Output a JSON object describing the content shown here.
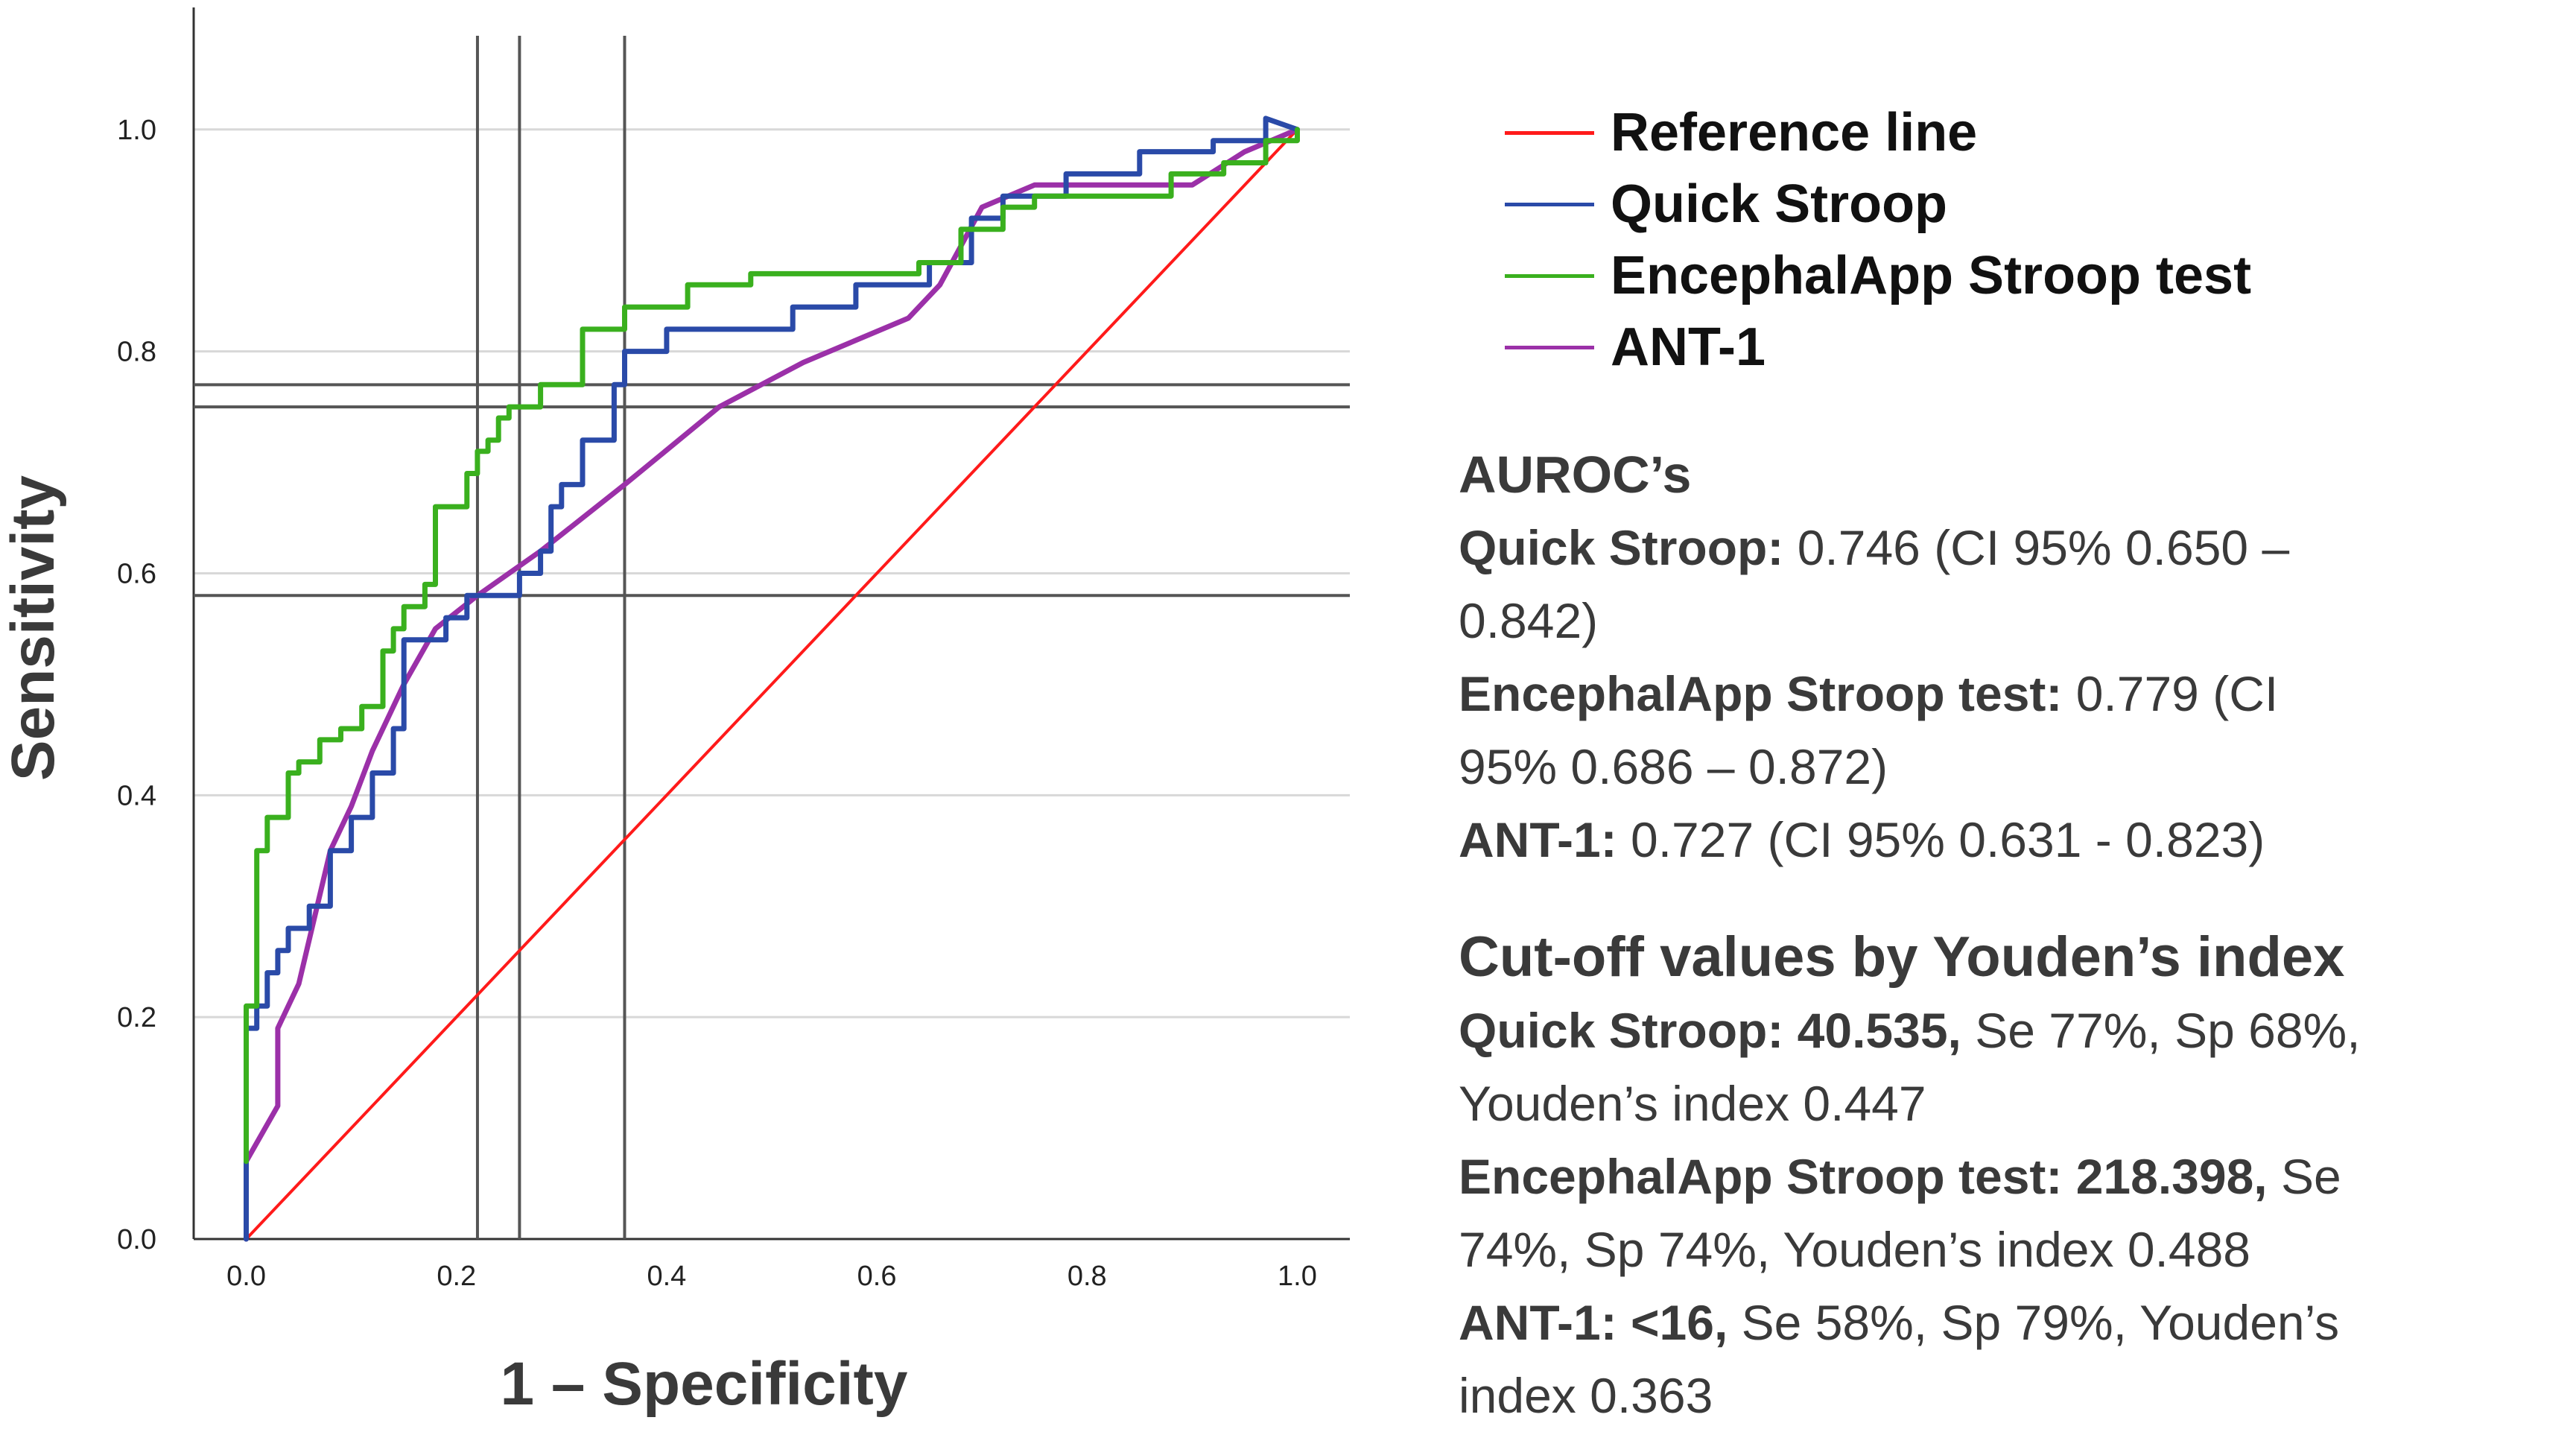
{
  "chart_data": {
    "type": "line",
    "title": "",
    "xlabel": "1 – Specificity",
    "ylabel": "Sensitivity",
    "xlim": [
      -0.05,
      1.05
    ],
    "ylim": [
      0.0,
      1.11
    ],
    "x_ticks": [
      "0.0",
      "0.2",
      "0.4",
      "0.6",
      "0.8",
      "1.0"
    ],
    "y_ticks": [
      "0.0",
      "0.2",
      "0.4",
      "0.6",
      "0.8",
      "1.0"
    ],
    "grid": "horizontal",
    "legend_position": "right",
    "series": [
      {
        "name": "Reference line",
        "color": "#ff1a1a",
        "x": [
          0,
          1
        ],
        "y": [
          0,
          1
        ]
      },
      {
        "name": "Quick Stroop",
        "color": "#2a4aa8",
        "x": [
          0,
          0,
          0.01,
          0.01,
          0.02,
          0.02,
          0.03,
          0.03,
          0.04,
          0.04,
          0.06,
          0.06,
          0.08,
          0.08,
          0.1,
          0.1,
          0.12,
          0.12,
          0.14,
          0.14,
          0.15,
          0.15,
          0.19,
          0.19,
          0.21,
          0.21,
          0.26,
          0.26,
          0.28,
          0.28,
          0.29,
          0.29,
          0.3,
          0.3,
          0.32,
          0.32,
          0.35,
          0.35,
          0.36,
          0.36,
          0.4,
          0.4,
          0.52,
          0.52,
          0.58,
          0.58,
          0.65,
          0.65,
          0.69,
          0.69,
          0.72,
          0.72,
          0.78,
          0.78,
          0.85,
          0.85,
          0.92,
          0.92,
          0.97,
          0.97,
          1.0
        ],
        "y": [
          0,
          0.19,
          0.19,
          0.21,
          0.21,
          0.24,
          0.24,
          0.26,
          0.26,
          0.28,
          0.28,
          0.3,
          0.3,
          0.35,
          0.35,
          0.38,
          0.38,
          0.42,
          0.42,
          0.46,
          0.46,
          0.54,
          0.54,
          0.56,
          0.56,
          0.58,
          0.58,
          0.6,
          0.6,
          0.62,
          0.62,
          0.66,
          0.66,
          0.68,
          0.68,
          0.72,
          0.72,
          0.77,
          0.77,
          0.8,
          0.8,
          0.82,
          0.82,
          0.84,
          0.84,
          0.86,
          0.86,
          0.88,
          0.88,
          0.92,
          0.92,
          0.94,
          0.94,
          0.96,
          0.96,
          0.98,
          0.98,
          0.99,
          0.99,
          1.01,
          1.0
        ]
      },
      {
        "name": "EncephalApp Stroop test",
        "color": "#3ab01e",
        "x": [
          0,
          0,
          0.01,
          0.01,
          0.02,
          0.02,
          0.04,
          0.04,
          0.05,
          0.05,
          0.07,
          0.07,
          0.09,
          0.09,
          0.11,
          0.11,
          0.13,
          0.13,
          0.14,
          0.14,
          0.15,
          0.15,
          0.17,
          0.17,
          0.18,
          0.18,
          0.21,
          0.21,
          0.22,
          0.22,
          0.23,
          0.23,
          0.24,
          0.24,
          0.25,
          0.25,
          0.28,
          0.28,
          0.32,
          0.32,
          0.36,
          0.36,
          0.42,
          0.42,
          0.48,
          0.48,
          0.64,
          0.64,
          0.68,
          0.68,
          0.72,
          0.72,
          0.75,
          0.75,
          0.88,
          0.88,
          0.93,
          0.93,
          0.97,
          0.97,
          1.0,
          1.0
        ],
        "y": [
          0.07,
          0.21,
          0.21,
          0.35,
          0.35,
          0.38,
          0.38,
          0.42,
          0.42,
          0.43,
          0.43,
          0.45,
          0.45,
          0.46,
          0.46,
          0.48,
          0.48,
          0.53,
          0.53,
          0.55,
          0.55,
          0.57,
          0.57,
          0.59,
          0.59,
          0.66,
          0.66,
          0.69,
          0.69,
          0.71,
          0.71,
          0.72,
          0.72,
          0.74,
          0.74,
          0.75,
          0.75,
          0.77,
          0.77,
          0.82,
          0.82,
          0.84,
          0.84,
          0.86,
          0.86,
          0.87,
          0.87,
          0.88,
          0.88,
          0.91,
          0.91,
          0.93,
          0.93,
          0.94,
          0.94,
          0.96,
          0.96,
          0.97,
          0.97,
          0.99,
          0.99,
          1.0
        ]
      },
      {
        "name": "ANT-1",
        "color": "#9b30a8",
        "x": [
          0,
          0,
          0.03,
          0.03,
          0.05,
          0.08,
          0.1,
          0.12,
          0.15,
          0.18,
          0.22,
          0.28,
          0.36,
          0.45,
          0.53,
          0.63,
          0.66,
          0.7,
          0.75,
          0.9,
          0.95,
          1.0
        ],
        "y": [
          0,
          0.07,
          0.12,
          0.19,
          0.23,
          0.35,
          0.39,
          0.44,
          0.5,
          0.55,
          0.58,
          0.62,
          0.68,
          0.75,
          0.79,
          0.83,
          0.86,
          0.93,
          0.95,
          0.95,
          0.98,
          1.0
        ]
      }
    ],
    "cutoff_lines": {
      "vertical_x": [
        0.22,
        0.26,
        0.36
      ],
      "horizontal_y": [
        0.58,
        0.75,
        0.77
      ]
    }
  },
  "stats": {
    "auroc_heading": "AUROC’s",
    "quick_label": "Quick Stroop:",
    "quick_value": " 0.746 (CI 95% 0.650 –",
    "quick_value2": "0.842)",
    "enceph_label": "EncephalApp Stroop test:",
    "enceph_value": " 0.779 (CI",
    "enceph_value2": "95% 0.686 – 0.872)",
    "ant_label": "ANT-1:",
    "ant_value": " 0.727 (CI 95%   0.631 - 0.823)",
    "cutoff_heading": "Cut-off values by Youden’s index",
    "c_quick_label": "Quick Stroop: 40.535,",
    "c_quick_value": " Se 77%, Sp 68%,",
    "c_quick_value2": "Youden’s index 0.447",
    "c_enceph_label": "EncephalApp Stroop test: 218.398,",
    "c_enceph_value": " Se",
    "c_enceph_value2": "74%, Sp 74%, Youden’s index 0.488",
    "c_ant_label": "ANT-1: <16,",
    "c_ant_value": " Se 58%, Sp 79%, Youden’s",
    "c_ant_value2": "index 0.363"
  }
}
